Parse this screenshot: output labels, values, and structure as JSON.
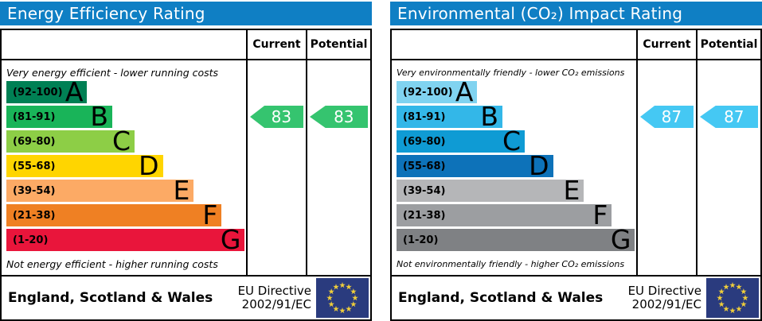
{
  "colors": {
    "header_bar": "#0f7fc4",
    "border": "#000000",
    "eu_flag_blue": "#2a3b7e",
    "eu_star_yellow": "#f0ce3a",
    "arrow_text": "#ffffff"
  },
  "panels": [
    {
      "title": "Energy Efficiency Rating",
      "header": {
        "current": "Current",
        "potential": "Potential"
      },
      "top_caption": "Very energy efficient - lower running costs",
      "bottom_caption": "Not energy efficient - higher running costs",
      "arrow_color": "#35c46f",
      "bands": [
        {
          "range": "(92-100)",
          "letter": "A",
          "color": "#008054",
          "width_pct": 33.7
        },
        {
          "range": "(81-91)",
          "letter": "B",
          "color": "#19b459",
          "width_pct": 44.2
        },
        {
          "range": "(69-80)",
          "letter": "C",
          "color": "#8dce46",
          "width_pct": 53.5
        },
        {
          "range": "(55-68)",
          "letter": "D",
          "color": "#ffd500",
          "width_pct": 65.3
        },
        {
          "range": "(39-54)",
          "letter": "E",
          "color": "#fcaa65",
          "width_pct": 78.2
        },
        {
          "range": "(21-38)",
          "letter": "F",
          "color": "#ef8023",
          "width_pct": 89.8
        },
        {
          "range": "(1-20)",
          "letter": "G",
          "color": "#e9153b",
          "width_pct": 99.5
        }
      ],
      "current": {
        "value": "83",
        "band_index": 1
      },
      "potential": {
        "value": "83",
        "band_index": 1
      },
      "footer": {
        "region": "England, Scotland & Wales",
        "directive": [
          "EU Directive",
          "2002/91/EC"
        ]
      }
    },
    {
      "title": "Environmental (CO₂) Impact Rating",
      "header": {
        "current": "Current",
        "potential": "Potential"
      },
      "top_caption": "Very environmentally friendly - lower CO₂ emissions",
      "bottom_caption": "Not environmentally friendly - higher CO₂ emissions",
      "arrow_color": "#45c8f3",
      "bands": [
        {
          "range": "(92-100)",
          "letter": "A",
          "color": "#80d3f0",
          "width_pct": 33.7
        },
        {
          "range": "(81-91)",
          "letter": "B",
          "color": "#33b7e8",
          "width_pct": 44.2
        },
        {
          "range": "(69-80)",
          "letter": "C",
          "color": "#0f9bd4",
          "width_pct": 53.5
        },
        {
          "range": "(55-68)",
          "letter": "D",
          "color": "#0d72b9",
          "width_pct": 65.3
        },
        {
          "range": "(39-54)",
          "letter": "E",
          "color": "#b5b6b8",
          "width_pct": 78.2
        },
        {
          "range": "(21-38)",
          "letter": "F",
          "color": "#9c9ea1",
          "width_pct": 89.8
        },
        {
          "range": "(1-20)",
          "letter": "G",
          "color": "#7f8184",
          "width_pct": 99.5
        }
      ],
      "current": {
        "value": "87",
        "band_index": 1
      },
      "potential": {
        "value": "87",
        "band_index": 1
      },
      "footer": {
        "region": "England, Scotland & Wales",
        "directive": [
          "EU Directive",
          "2002/91/EC"
        ]
      }
    }
  ],
  "chart_data": [
    {
      "type": "bar",
      "title": "Energy Efficiency Rating",
      "categories": [
        "A (92-100)",
        "B (81-91)",
        "C (69-80)",
        "D (55-68)",
        "E (39-54)",
        "F (21-38)",
        "G (1-20)"
      ],
      "band_bar_widths_pct": [
        33.7,
        44.2,
        53.5,
        65.3,
        78.2,
        89.8,
        99.5
      ],
      "current": 83,
      "current_band": "B",
      "potential": 83,
      "potential_band": "B",
      "top_annotation": "Very energy efficient - lower running costs",
      "bottom_annotation": "Not energy efficient - higher running costs",
      "value_range": [
        1,
        100
      ],
      "legend_position": "top-right-columns",
      "columns": [
        "Current",
        "Potential"
      ]
    },
    {
      "type": "bar",
      "title": "Environmental (CO₂) Impact Rating",
      "categories": [
        "A (92-100)",
        "B (81-91)",
        "C (69-80)",
        "D (55-68)",
        "E (39-54)",
        "F (21-38)",
        "G (1-20)"
      ],
      "band_bar_widths_pct": [
        33.7,
        44.2,
        53.5,
        65.3,
        78.2,
        89.8,
        99.5
      ],
      "current": 87,
      "current_band": "B",
      "potential": 87,
      "potential_band": "B",
      "top_annotation": "Very environmentally friendly - lower CO₂ emissions",
      "bottom_annotation": "Not environmentally friendly - higher CO₂ emissions",
      "value_range": [
        1,
        100
      ],
      "legend_position": "top-right-columns",
      "columns": [
        "Current",
        "Potential"
      ]
    }
  ]
}
